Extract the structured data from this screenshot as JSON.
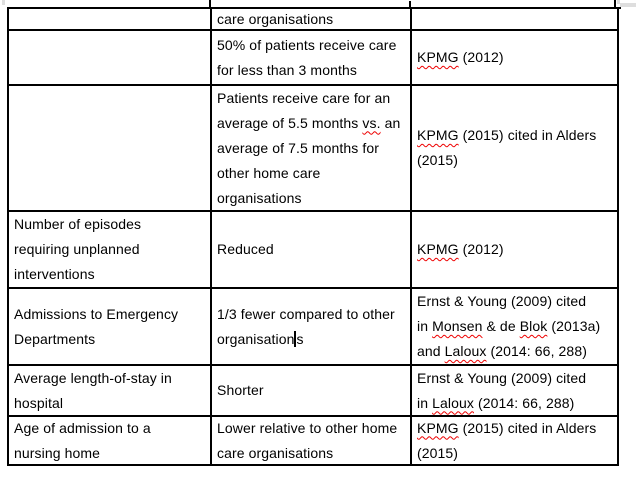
{
  "document": {
    "background": "#ffffff",
    "text_color": "#000000",
    "border_color": "#000000",
    "squiggle_color": "#ee0000"
  },
  "table": {
    "rows": [
      {
        "id": "row-care-organisations-continuation",
        "left": [],
        "middle": [
          [
            {
              "t": "care organisations"
            }
          ]
        ],
        "right": []
      },
      {
        "id": "row-50pct-care-duration",
        "left": [],
        "middle": [
          [
            {
              "t": "50% of patients receive care"
            }
          ],
          [
            {
              "t": "for less than 3 months"
            }
          ]
        ],
        "right": [
          [
            {
              "t": "KPMG",
              "misspelled": true
            },
            {
              "t": " (2012)"
            }
          ]
        ]
      },
      {
        "id": "row-average-care-duration",
        "left": [],
        "middle": [
          [
            {
              "t": "Patients receive care for an"
            }
          ],
          [
            {
              "t": "average of 5.5 months "
            },
            {
              "t": "vs.",
              "misspelled": true
            },
            {
              "t": " an"
            }
          ],
          [
            {
              "t": "average of 7.5 months for"
            }
          ],
          [
            {
              "t": "other home care"
            }
          ],
          [
            {
              "t": "organisations"
            }
          ]
        ],
        "right": [
          [
            {
              "t": "KPMG",
              "misspelled": true
            },
            {
              "t": " (2015) cited in Alders"
            }
          ],
          [
            {
              "t": "(2015)"
            }
          ]
        ]
      },
      {
        "id": "row-unplanned-interventions",
        "left": [
          [
            {
              "t": "Number of episodes"
            }
          ],
          [
            {
              "t": "requiring unplanned"
            }
          ],
          [
            {
              "t": "interventions"
            }
          ]
        ],
        "middle": [
          [
            {
              "t": "Reduced"
            }
          ]
        ],
        "right": [
          [
            {
              "t": "KPMG",
              "misspelled": true
            },
            {
              "t": " (2012)"
            }
          ]
        ]
      },
      {
        "id": "row-emergency-admissions",
        "left": [
          [
            {
              "t": "Admissions to Emergency"
            }
          ],
          [
            {
              "t": "Departments"
            }
          ]
        ],
        "middle": [
          [
            {
              "t": "1/3 fewer compared to other"
            }
          ],
          [
            {
              "t": "organisation"
            },
            {
              "caret": true
            },
            {
              "t": "s"
            }
          ]
        ],
        "right": [
          [
            {
              "t": "Ernst & Young (2009) cited"
            }
          ],
          [
            {
              "t": "in "
            },
            {
              "t": "Monsen",
              "misspelled": true
            },
            {
              "t": " & de "
            },
            {
              "t": "Blok",
              "misspelled": true
            },
            {
              "t": " (2013a)"
            }
          ],
          [
            {
              "t": "and "
            },
            {
              "t": "Laloux",
              "misspelled": true
            },
            {
              "t": " (2014: 66, 288)"
            }
          ]
        ]
      },
      {
        "id": "row-length-of-stay",
        "left": [
          [
            {
              "t": "Average length-of-stay in"
            }
          ],
          [
            {
              "t": "hospital"
            }
          ]
        ],
        "middle": [
          [
            {
              "t": "Shorter"
            }
          ]
        ],
        "right": [
          [
            {
              "t": "Ernst & Young (2009) cited"
            }
          ],
          [
            {
              "t": "in "
            },
            {
              "t": "Laloux",
              "misspelled": true
            },
            {
              "t": " (2014: 66, 288)"
            }
          ]
        ]
      },
      {
        "id": "row-nursing-home-age",
        "left": [
          [
            {
              "t": "Age of admission to a"
            }
          ],
          [
            {
              "t": "nursing home"
            }
          ]
        ],
        "middle": [
          [
            {
              "t": "Lower relative to other home"
            }
          ],
          [
            {
              "t": "care organisations"
            }
          ]
        ],
        "right": [
          [
            {
              "t": "KPMG",
              "misspelled": true
            },
            {
              "t": " (2015) cited in Alders"
            }
          ],
          [
            {
              "t": "(2015)"
            }
          ]
        ]
      }
    ]
  }
}
